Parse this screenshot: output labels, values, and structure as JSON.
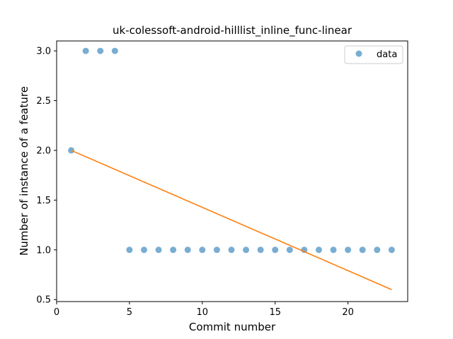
{
  "chart_data": {
    "type": "scatter",
    "title": "uk-colessoft-android-hilllist_inline_func-linear",
    "xlabel": "Commit number",
    "ylabel": "Number of instance of a feature",
    "xlim": [
      0,
      24.1
    ],
    "ylim": [
      0.48,
      3.1
    ],
    "xticks": [
      0,
      5,
      10,
      15,
      20
    ],
    "yticks": [
      0.5,
      1.0,
      1.5,
      2.0,
      2.5,
      3.0
    ],
    "xtick_labels": [
      "0",
      "5",
      "10",
      "15",
      "20"
    ],
    "ytick_labels": [
      "0.5",
      "1.0",
      "1.5",
      "2.0",
      "2.5",
      "3.0"
    ],
    "grid": false,
    "legend_position": "top-right",
    "series": [
      {
        "name": "data",
        "kind": "scatter",
        "color": "#1f77b4",
        "x": [
          1,
          2,
          3,
          4,
          5,
          6,
          7,
          8,
          9,
          10,
          11,
          12,
          13,
          14,
          15,
          16,
          17,
          18,
          19,
          20,
          21,
          22,
          23
        ],
        "y": [
          2,
          3,
          3,
          3,
          1,
          1,
          1,
          1,
          1,
          1,
          1,
          1,
          1,
          1,
          1,
          1,
          1,
          1,
          1,
          1,
          1,
          1,
          1
        ]
      },
      {
        "kind": "line",
        "color": "#ff7f0e",
        "x": [
          1,
          23
        ],
        "y": [
          2.0,
          0.6
        ]
      }
    ]
  }
}
